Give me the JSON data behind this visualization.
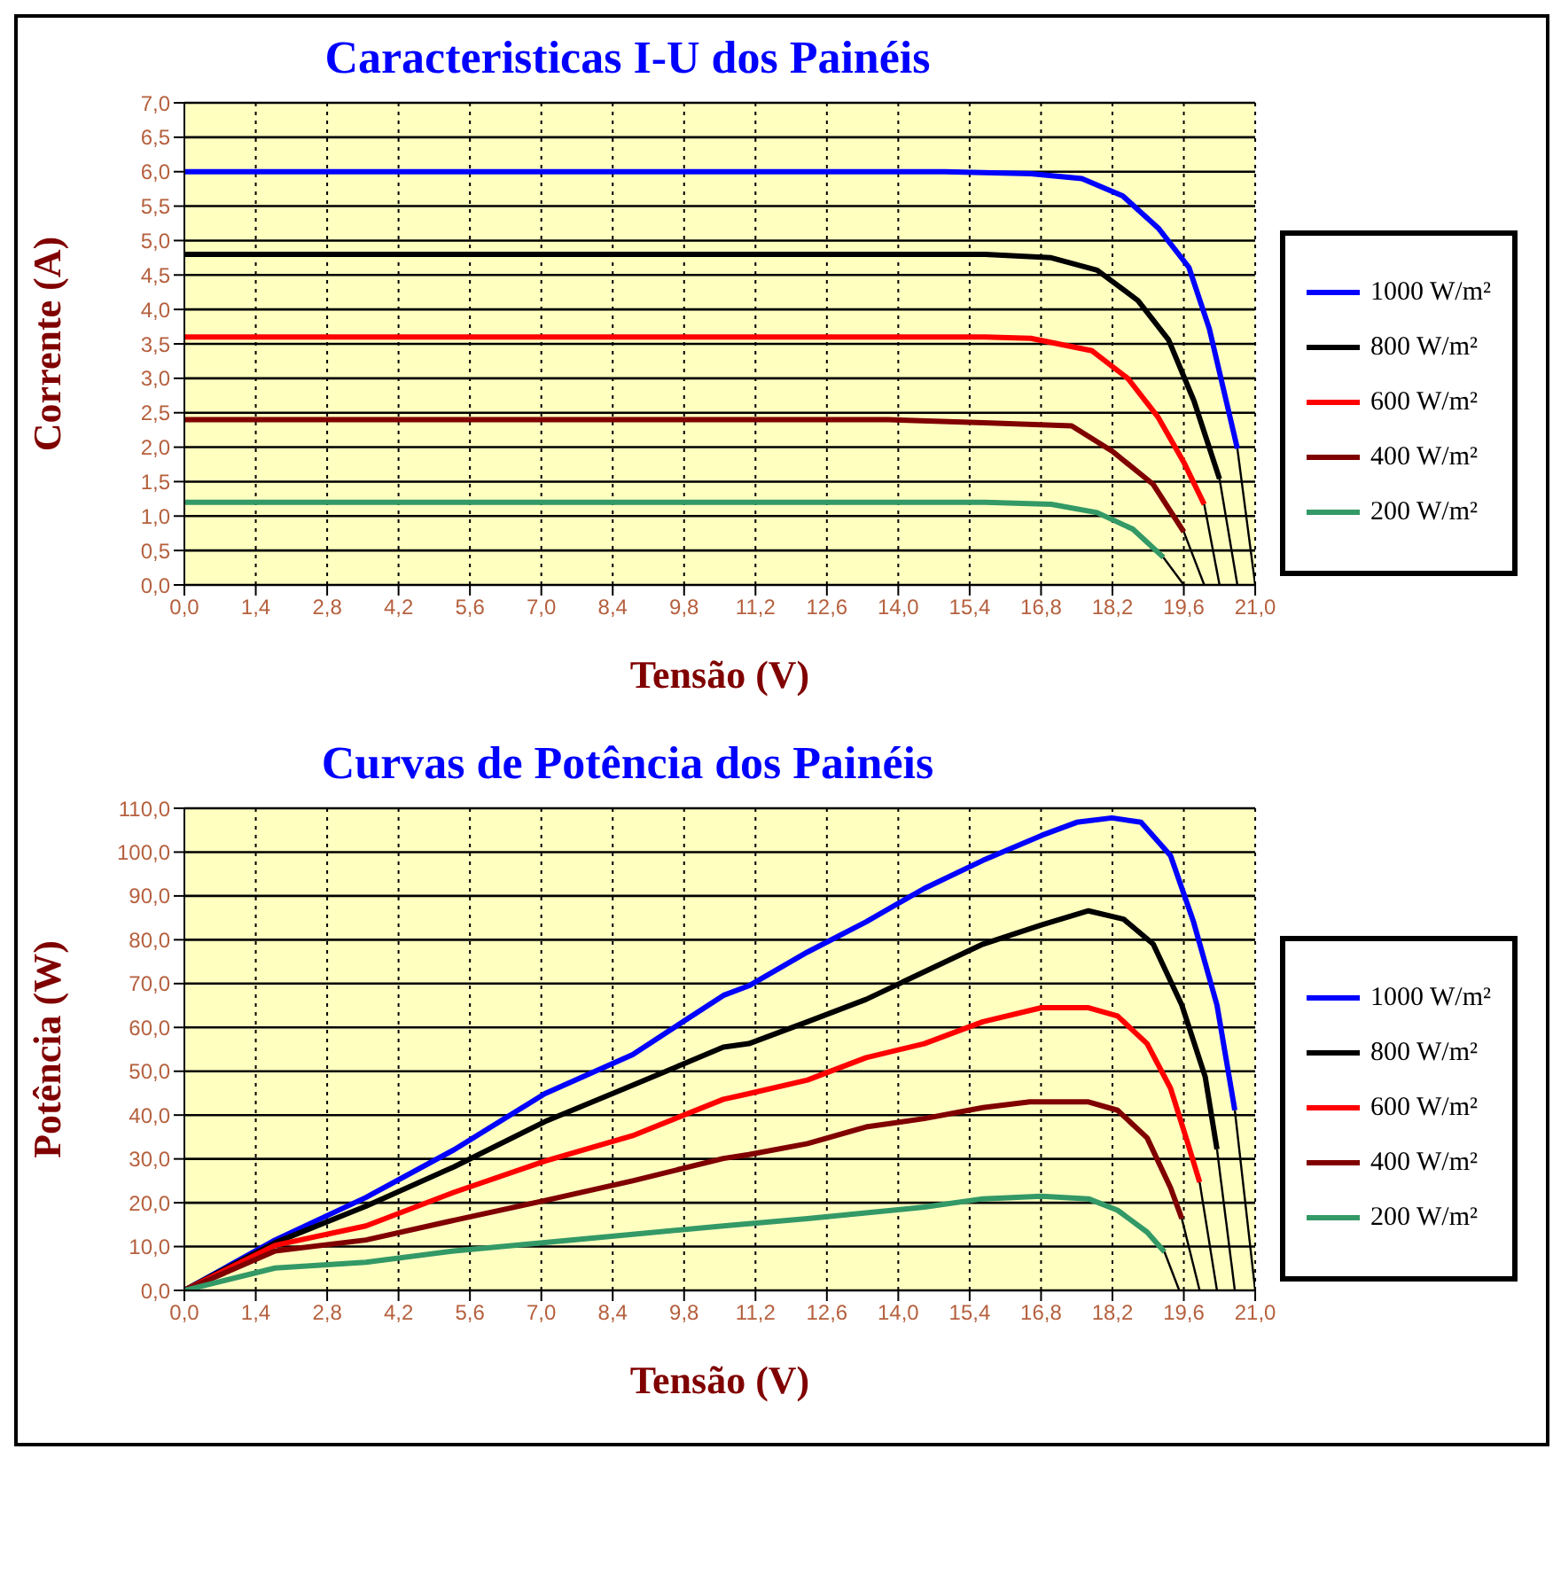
{
  "chart_data": [
    {
      "type": "line",
      "title": "Caracteristicas I-U dos Painéis",
      "xlabel": "Tensão (V)",
      "ylabel": "Corrente (A)",
      "xlim": [
        0,
        21
      ],
      "xticks": [
        {
          "value": 0,
          "label": "0,0"
        },
        {
          "value": 1.4,
          "label": "1,4"
        },
        {
          "value": 2.8,
          "label": "2,8"
        },
        {
          "value": 4.2,
          "label": "4,2"
        },
        {
          "value": 5.6,
          "label": "5,6"
        },
        {
          "value": 7,
          "label": "7,0"
        },
        {
          "value": 8.4,
          "label": "8,4"
        },
        {
          "value": 9.8,
          "label": "9,8"
        },
        {
          "value": 11.2,
          "label": "11,2"
        },
        {
          "value": 12.6,
          "label": "12,6"
        },
        {
          "value": 14,
          "label": "14,0"
        },
        {
          "value": 15.4,
          "label": "15,4"
        },
        {
          "value": 16.8,
          "label": "16,8"
        },
        {
          "value": 18.2,
          "label": "18,2"
        },
        {
          "value": 19.6,
          "label": "19,6"
        },
        {
          "value": 21,
          "label": "21,0"
        }
      ],
      "ylim": [
        0,
        7
      ],
      "yticks": [
        {
          "value": 0,
          "label": "0,0"
        },
        {
          "value": 0.5,
          "label": "0,5"
        },
        {
          "value": 1,
          "label": "1,0"
        },
        {
          "value": 1.5,
          "label": "1,5"
        },
        {
          "value": 2,
          "label": "2,0"
        },
        {
          "value": 2.5,
          "label": "2,5"
        },
        {
          "value": 3,
          "label": "3,0"
        },
        {
          "value": 3.5,
          "label": "3,5"
        },
        {
          "value": 4,
          "label": "4,0"
        },
        {
          "value": 4.5,
          "label": "4,5"
        },
        {
          "value": 5,
          "label": "5,0"
        },
        {
          "value": 5.5,
          "label": "5,5"
        },
        {
          "value": 6,
          "label": "6,0"
        },
        {
          "value": 6.5,
          "label": "6,5"
        },
        {
          "value": 7,
          "label": "7,0"
        }
      ],
      "grid": true,
      "legend": "right",
      "marker": "none",
      "series": [
        {
          "name": "1000 W/m²",
          "color": "#0000ff",
          "x": [
            0,
            14.9,
            16.6,
            17.6,
            18.4,
            19.1,
            19.7,
            20.1,
            20.65
          ],
          "values": [
            6.0,
            6.0,
            5.97,
            5.9,
            5.65,
            5.18,
            4.61,
            3.72,
            1.98
          ]
        },
        {
          "name": "800 W/m²",
          "color": "#000000",
          "x": [
            0,
            15.7,
            17.0,
            17.9,
            18.7,
            19.3,
            19.8,
            20.3
          ],
          "values": [
            4.8,
            4.8,
            4.75,
            4.57,
            4.13,
            3.56,
            2.67,
            1.54
          ]
        },
        {
          "name": "600 W/m²",
          "color": "#ff0000",
          "x": [
            0,
            15.7,
            16.6,
            17.8,
            18.5,
            19.1,
            19.6,
            20.0
          ],
          "values": [
            3.6,
            3.6,
            3.58,
            3.4,
            3.0,
            2.43,
            1.78,
            1.17
          ]
        },
        {
          "name": "400 W/m²",
          "color": "#800000",
          "x": [
            0,
            13.8,
            15.8,
            17.4,
            18.2,
            19.0,
            19.6
          ],
          "values": [
            2.4,
            2.4,
            2.35,
            2.31,
            1.94,
            1.46,
            0.77
          ]
        },
        {
          "name": "200 W/m²",
          "color": "#339966",
          "x": [
            0,
            15.7,
            17.0,
            17.9,
            18.6,
            19.2
          ],
          "values": [
            1.2,
            1.2,
            1.17,
            1.05,
            0.81,
            0.4
          ]
        },
        {
          "color": "#000000",
          "x": [
            20.65,
            21.0
          ],
          "values": [
            1.98,
            0
          ]
        },
        {
          "color": "#000000",
          "x": [
            20.3,
            20.65
          ],
          "values": [
            1.54,
            0
          ]
        },
        {
          "color": "#000000",
          "x": [
            20.0,
            20.3
          ],
          "values": [
            1.17,
            0
          ]
        },
        {
          "color": "#000000",
          "x": [
            19.6,
            20.0
          ],
          "values": [
            0.77,
            0
          ]
        },
        {
          "color": "#000000",
          "x": [
            19.2,
            19.6
          ],
          "values": [
            0.4,
            0
          ]
        }
      ]
    },
    {
      "type": "line",
      "title": "Curvas de Potência dos Painéis",
      "xlabel": "Tensão (V)",
      "ylabel": "Potência (W)",
      "xlim": [
        0,
        21
      ],
      "xticks": [
        {
          "value": 0,
          "label": "0,0"
        },
        {
          "value": 1.4,
          "label": "1,4"
        },
        {
          "value": 2.8,
          "label": "2,8"
        },
        {
          "value": 4.2,
          "label": "4,2"
        },
        {
          "value": 5.6,
          "label": "5,6"
        },
        {
          "value": 7,
          "label": "7,0"
        },
        {
          "value": 8.4,
          "label": "8,4"
        },
        {
          "value": 9.8,
          "label": "9,8"
        },
        {
          "value": 11.2,
          "label": "11,2"
        },
        {
          "value": 12.6,
          "label": "12,6"
        },
        {
          "value": 14,
          "label": "14,0"
        },
        {
          "value": 15.4,
          "label": "15,4"
        },
        {
          "value": 16.8,
          "label": "16,8"
        },
        {
          "value": 18.2,
          "label": "18,2"
        },
        {
          "value": 19.6,
          "label": "19,6"
        },
        {
          "value": 21,
          "label": "21,0"
        }
      ],
      "ylim": [
        0,
        110
      ],
      "yticks": [
        {
          "value": 0,
          "label": "0,0"
        },
        {
          "value": 10,
          "label": "10,0"
        },
        {
          "value": 20,
          "label": "20,0"
        },
        {
          "value": 30,
          "label": "30,0"
        },
        {
          "value": 40,
          "label": "40,0"
        },
        {
          "value": 50,
          "label": "50,0"
        },
        {
          "value": 60,
          "label": "60,0"
        },
        {
          "value": 70,
          "label": "70,0"
        },
        {
          "value": 80,
          "label": "80,0"
        },
        {
          "value": 90,
          "label": "90,0"
        },
        {
          "value": 100,
          "label": "100,0"
        },
        {
          "value": 110,
          "label": "110,0"
        }
      ],
      "grid": true,
      "legend": "right",
      "marker": "none",
      "series": [
        {
          "name": "1000 W/m²",
          "color": "#0000ff",
          "x": [
            0,
            1.78,
            3.56,
            5.29,
            7.07,
            8.79,
            10.57,
            11.07,
            12.22,
            13.37,
            14.51,
            15.66,
            16.81,
            17.5,
            18.19,
            18.76,
            19.34,
            19.79,
            20.25,
            20.6
          ],
          "values": [
            0,
            11.5,
            21.2,
            32.1,
            44.9,
            53.8,
            67.3,
            69.5,
            77.2,
            84.1,
            91.7,
            98.1,
            103.8,
            106.8,
            107.8,
            106.8,
            99.2,
            84.1,
            65.1,
            41.1
          ]
        },
        {
          "name": "800 W/m²",
          "color": "#000000",
          "x": [
            0,
            1.78,
            3.56,
            5.29,
            7.07,
            8.79,
            10.57,
            11.07,
            12.22,
            13.37,
            14.51,
            15.66,
            16.81,
            17.73,
            18.42,
            19.0,
            19.56,
            20.02,
            20.25
          ],
          "values": [
            0,
            10.9,
            19.2,
            28.2,
            38.5,
            46.8,
            55.5,
            56.3,
            61.3,
            66.4,
            72.7,
            79.0,
            83.4,
            86.6,
            84.7,
            79.0,
            65.1,
            48.7,
            32.2
          ]
        },
        {
          "name": "600 W/m²",
          "color": "#ff0000",
          "x": [
            0,
            1.78,
            3.56,
            5.29,
            7.07,
            8.79,
            10.57,
            11.07,
            12.22,
            13.37,
            14.51,
            15.66,
            16.81,
            17.73,
            18.3,
            18.88,
            19.34,
            19.68,
            19.91
          ],
          "values": [
            0,
            10.3,
            14.7,
            22.4,
            29.5,
            35.3,
            43.6,
            44.9,
            48.0,
            53.1,
            56.3,
            61.3,
            64.5,
            64.5,
            62.6,
            56.3,
            46.1,
            33.5,
            24.7
          ]
        },
        {
          "name": "400 W/m²",
          "color": "#800000",
          "x": [
            0,
            1.78,
            3.56,
            5.29,
            7.07,
            8.79,
            10.57,
            11.07,
            12.22,
            13.37,
            14.51,
            15.66,
            16.58,
            17.73,
            18.3,
            18.88,
            19.34,
            19.56
          ],
          "values": [
            0,
            9.0,
            11.5,
            16.0,
            20.5,
            25.0,
            30.1,
            31.0,
            33.5,
            37.3,
            39.2,
            41.7,
            43.0,
            43.0,
            41.1,
            34.8,
            23.4,
            16.4
          ]
        },
        {
          "name": "200 W/m²",
          "color": "#339966",
          "x": [
            0,
            1.78,
            3.56,
            5.29,
            7.07,
            8.79,
            10.57,
            11.07,
            12.22,
            13.37,
            14.51,
            15.66,
            16.81,
            17.73,
            18.3,
            18.88,
            19.22
          ],
          "values": [
            0,
            5.1,
            6.4,
            9.0,
            10.9,
            12.8,
            14.7,
            15.2,
            16.4,
            17.7,
            19.0,
            20.9,
            21.5,
            20.9,
            18.3,
            13.3,
            8.8
          ]
        },
        {
          "color": "#000000",
          "x": [
            20.6,
            21.0
          ],
          "values": [
            41.1,
            0
          ]
        },
        {
          "color": "#000000",
          "x": [
            20.25,
            20.6
          ],
          "values": [
            32.2,
            0
          ]
        },
        {
          "color": "#000000",
          "x": [
            19.91,
            20.25
          ],
          "values": [
            24.7,
            0
          ]
        },
        {
          "color": "#000000",
          "x": [
            19.56,
            19.91
          ],
          "values": [
            16.4,
            0
          ]
        },
        {
          "color": "#000000",
          "x": [
            19.22,
            19.51
          ],
          "values": [
            8.8,
            0
          ]
        }
      ]
    }
  ]
}
